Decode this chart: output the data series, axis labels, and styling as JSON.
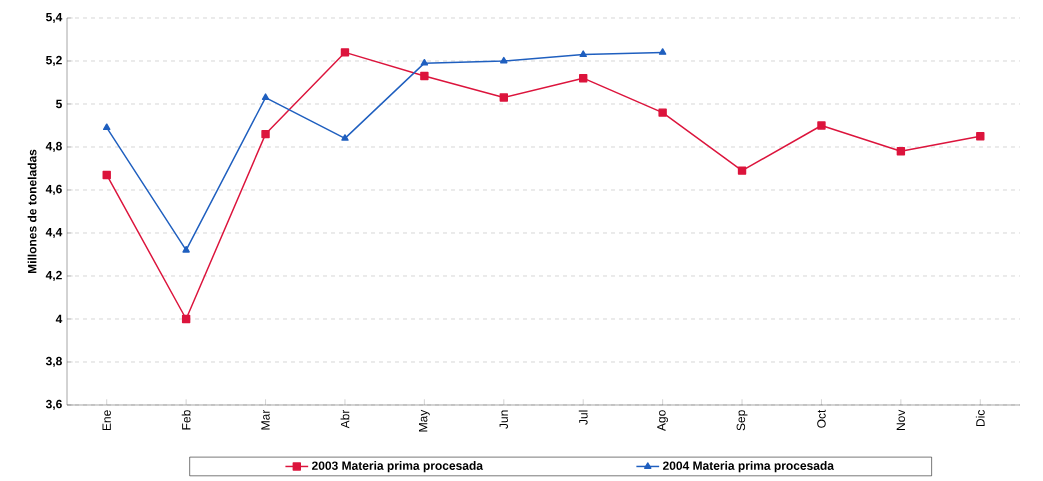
{
  "chart_data": {
    "type": "line",
    "ylabel": "Millones de toneladas",
    "categories": [
      "Ene",
      "Feb",
      "Mar",
      "Abr",
      "May",
      "Jun",
      "Jul",
      "Ago",
      "Sep",
      "Oct",
      "Nov",
      "Dic"
    ],
    "series": [
      {
        "name": "2003 Materia prima procesada",
        "color": "#dc143c",
        "marker": "square",
        "values": [
          4.67,
          4.0,
          4.86,
          5.24,
          5.13,
          5.03,
          5.12,
          4.96,
          4.69,
          4.9,
          4.78,
          4.85
        ]
      },
      {
        "name": "2004 Materia prima procesada",
        "color": "#1f5fbf",
        "marker": "triangle",
        "values": [
          4.89,
          4.32,
          5.03,
          4.84,
          5.19,
          5.2,
          5.23,
          5.24,
          null,
          null,
          null,
          null
        ]
      }
    ],
    "ylim": [
      3.6,
      5.4
    ],
    "yticks": [
      {
        "value": 3.6,
        "label": "3,6"
      },
      {
        "value": 3.8,
        "label": "3,8"
      },
      {
        "value": 4,
        "label": "4"
      },
      {
        "value": 4.2,
        "label": "4,2"
      },
      {
        "value": 4.4,
        "label": "4,4"
      },
      {
        "value": 4.6,
        "label": "4,6"
      },
      {
        "value": 4.8,
        "label": "4,8"
      },
      {
        "value": 5,
        "label": "5"
      },
      {
        "value": 5.2,
        "label": "5,2"
      },
      {
        "value": 5.4,
        "label": "5,4"
      }
    ],
    "grid": "y",
    "legend": "bottom",
    "line_style": "solid"
  }
}
